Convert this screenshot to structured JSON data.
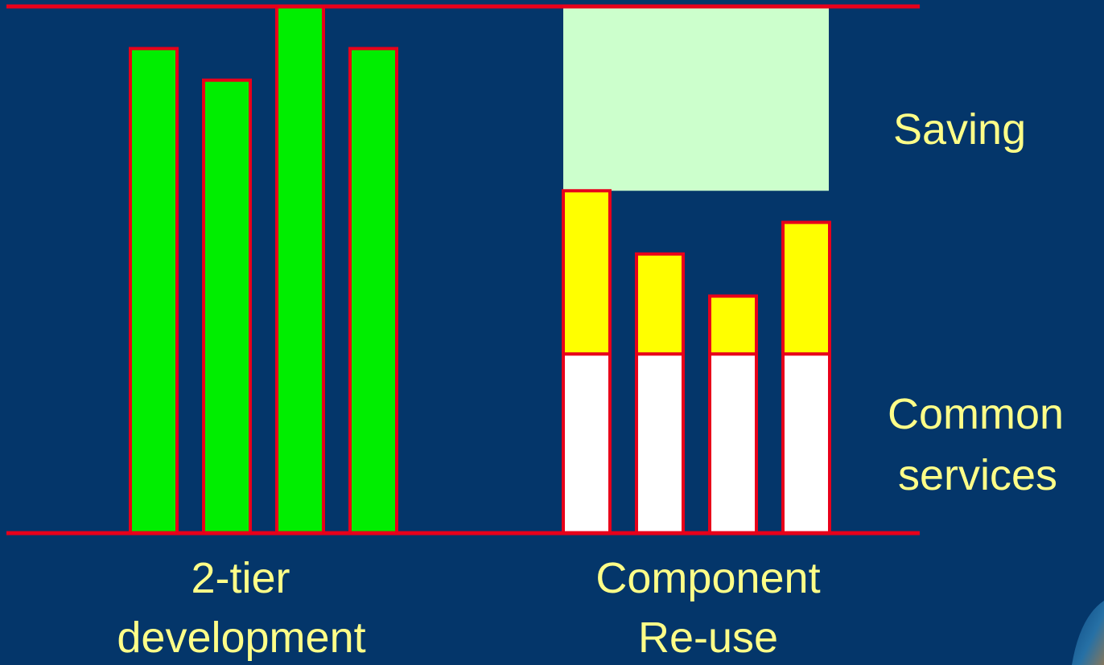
{
  "colors": {
    "background": "#04366a",
    "axis_line": "#e8001a",
    "bar_outline": "#e8001a",
    "development_bar": "#00ee00",
    "common_services": "#ffffff",
    "reuse_specific": "#ffff00",
    "saving": "#ccffcc",
    "label_text": "#ffff88"
  },
  "chart_data": {
    "type": "bar",
    "title": "",
    "xlabel": "",
    "ylabel": "",
    "ylim": [
      0,
      100
    ],
    "grid": false,
    "groups": [
      {
        "label_line1": "2-tier",
        "label_line2": "development",
        "stacked": false,
        "values": [
          92,
          86,
          100,
          92
        ]
      },
      {
        "label_line1": "Component",
        "label_line2": "Re-use",
        "stacked": true,
        "series": [
          {
            "role": "common",
            "values": [
              34,
              34,
              34,
              34
            ]
          },
          {
            "role": "specific",
            "values": [
              31,
              19,
              11,
              25
            ]
          }
        ],
        "saving": {
          "bottom": 65,
          "top": 100
        }
      }
    ],
    "annotations": {
      "saving": "Saving",
      "common_line1": "Common",
      "common_line2": "services"
    }
  }
}
